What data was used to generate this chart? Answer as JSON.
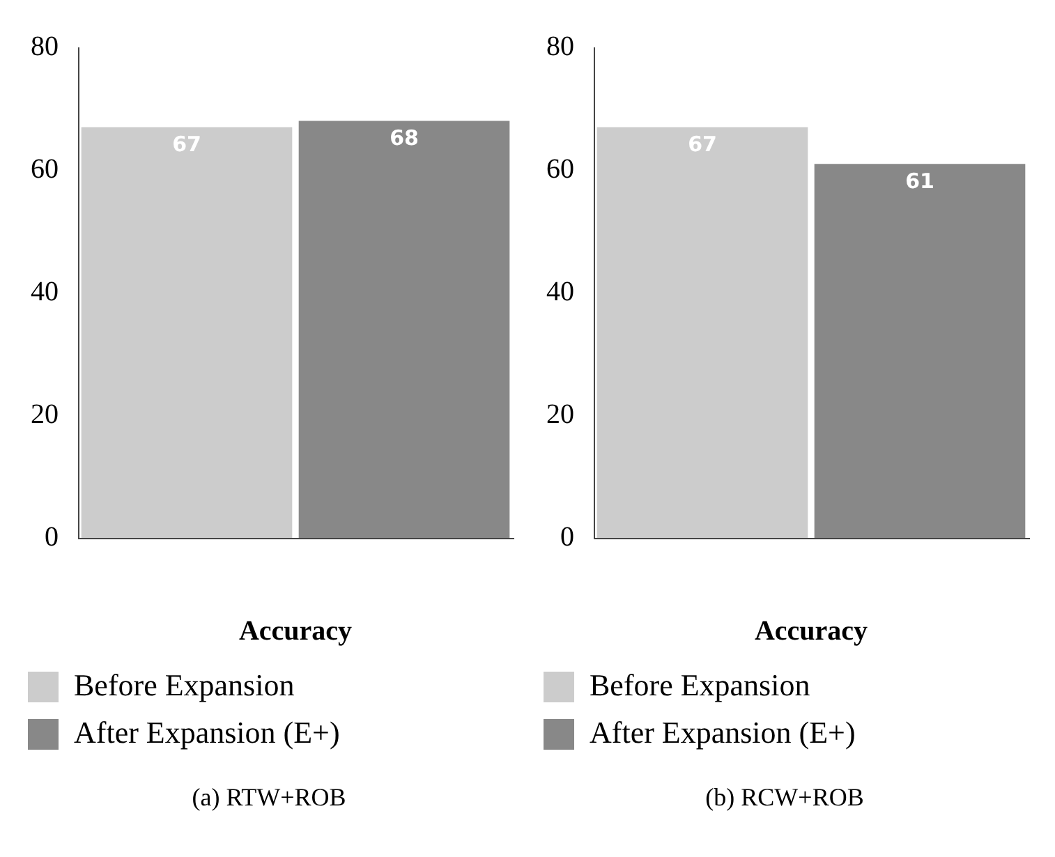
{
  "chart_data": [
    {
      "type": "bar",
      "title": "(a) RTW+ROB",
      "xlabel": "Accuracy",
      "categories": [
        null,
        null
      ],
      "series": [
        {
          "name": "Before Expansion",
          "color": "#cccccc",
          "values": [
            67,
            null
          ]
        },
        {
          "name": "After Expansion (E+)",
          "color": "#888888",
          "values": [
            null,
            68
          ]
        }
      ],
      "ylim": [
        0,
        80
      ],
      "yticks": [
        0,
        20,
        40,
        60,
        80
      ],
      "grid": false,
      "legend": "bottom",
      "data_labels": true
    },
    {
      "type": "bar",
      "title": "(b) RCW+ROB",
      "xlabel": "Accuracy",
      "categories": [
        null,
        null
      ],
      "series": [
        {
          "name": "Before Expansion",
          "color": "#cccccc",
          "values": [
            67,
            null
          ]
        },
        {
          "name": "After Expansion (E+)",
          "color": "#888888",
          "values": [
            null,
            61
          ]
        }
      ],
      "ylim": [
        0,
        80
      ],
      "yticks": [
        0,
        20,
        40,
        60,
        80
      ],
      "grid": false,
      "legend": "bottom",
      "data_labels": true
    }
  ]
}
